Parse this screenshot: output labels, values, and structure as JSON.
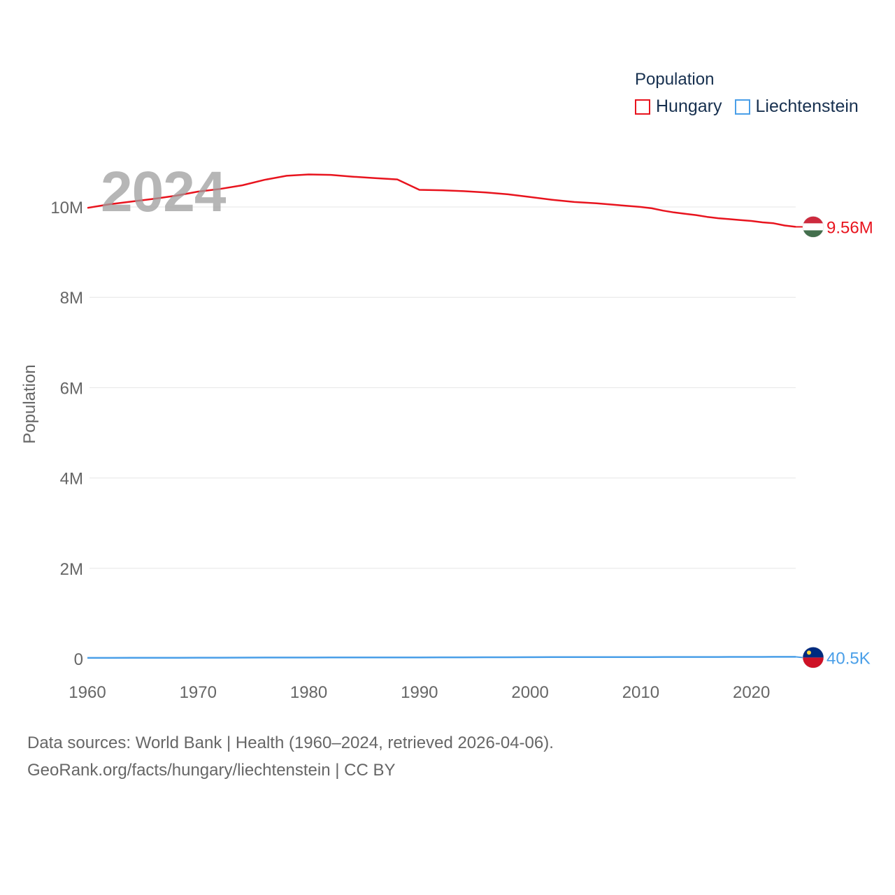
{
  "year_watermark": "2024",
  "legend": {
    "title": "Population",
    "items": [
      {
        "label": "Hungary",
        "color": "#e8141e"
      },
      {
        "label": "Liechtenstein",
        "color": "#4a9fe8"
      }
    ]
  },
  "footer": {
    "line1": "Data sources: World Bank | Health (1960–2024, retrieved 2026-04-06).",
    "line2": "GeoRank.org/facts/hungary/liechtenstein | CC BY"
  },
  "chart_data": {
    "type": "line",
    "title": "",
    "xlabel": "",
    "ylabel": "Population",
    "xlim": [
      1960,
      2024
    ],
    "ylim": [
      0,
      11000000
    ],
    "xticks": [
      1960,
      1970,
      1980,
      1990,
      2000,
      2010,
      2020
    ],
    "xtick_labels": [
      "1960",
      "1970",
      "1980",
      "1990",
      "2000",
      "2010",
      "2020"
    ],
    "yticks": [
      0,
      2000000,
      4000000,
      6000000,
      8000000,
      10000000
    ],
    "ytick_labels": [
      "0",
      "2M",
      "4M",
      "6M",
      "8M",
      "10M"
    ],
    "grid": true,
    "legend_position": "top-right",
    "x": [
      1960,
      1962,
      1964,
      1966,
      1968,
      1970,
      1972,
      1974,
      1976,
      1978,
      1980,
      1982,
      1984,
      1986,
      1988,
      1990,
      1992,
      1994,
      1996,
      1998,
      2000,
      2002,
      2004,
      2006,
      2008,
      2010,
      2011,
      2012,
      2013,
      2014,
      2015,
      2016,
      2017,
      2018,
      2019,
      2020,
      2021,
      2022,
      2023,
      2024
    ],
    "series": [
      {
        "name": "Hungary",
        "color": "#e8141e",
        "end_label": "9.56M",
        "flag": "hungary-flag",
        "values": [
          9980000,
          10060000,
          10120000,
          10180000,
          10250000,
          10340000,
          10400000,
          10480000,
          10600000,
          10690000,
          10720000,
          10710000,
          10670000,
          10640000,
          10610000,
          10380000,
          10370000,
          10350000,
          10320000,
          10280000,
          10220000,
          10160000,
          10110000,
          10080000,
          10040000,
          10000000,
          9970000,
          9920000,
          9880000,
          9850000,
          9820000,
          9780000,
          9750000,
          9730000,
          9710000,
          9690000,
          9660000,
          9640000,
          9590000,
          9560000
        ]
      },
      {
        "name": "Liechtenstein",
        "color": "#4a9fe8",
        "end_label": "40.5K",
        "flag": "liechtenstein-flag",
        "values": [
          16500,
          17300,
          18200,
          19300,
          20500,
          21300,
          22200,
          23300,
          24300,
          25000,
          25200,
          25700,
          26300,
          26900,
          27600,
          28400,
          29200,
          30100,
          30800,
          31500,
          32600,
          33500,
          34300,
          34900,
          35600,
          36000,
          36300,
          36600,
          36900,
          37200,
          37500,
          37700,
          37900,
          38100,
          38400,
          38800,
          39200,
          39600,
          40100,
          40500
        ]
      }
    ]
  }
}
